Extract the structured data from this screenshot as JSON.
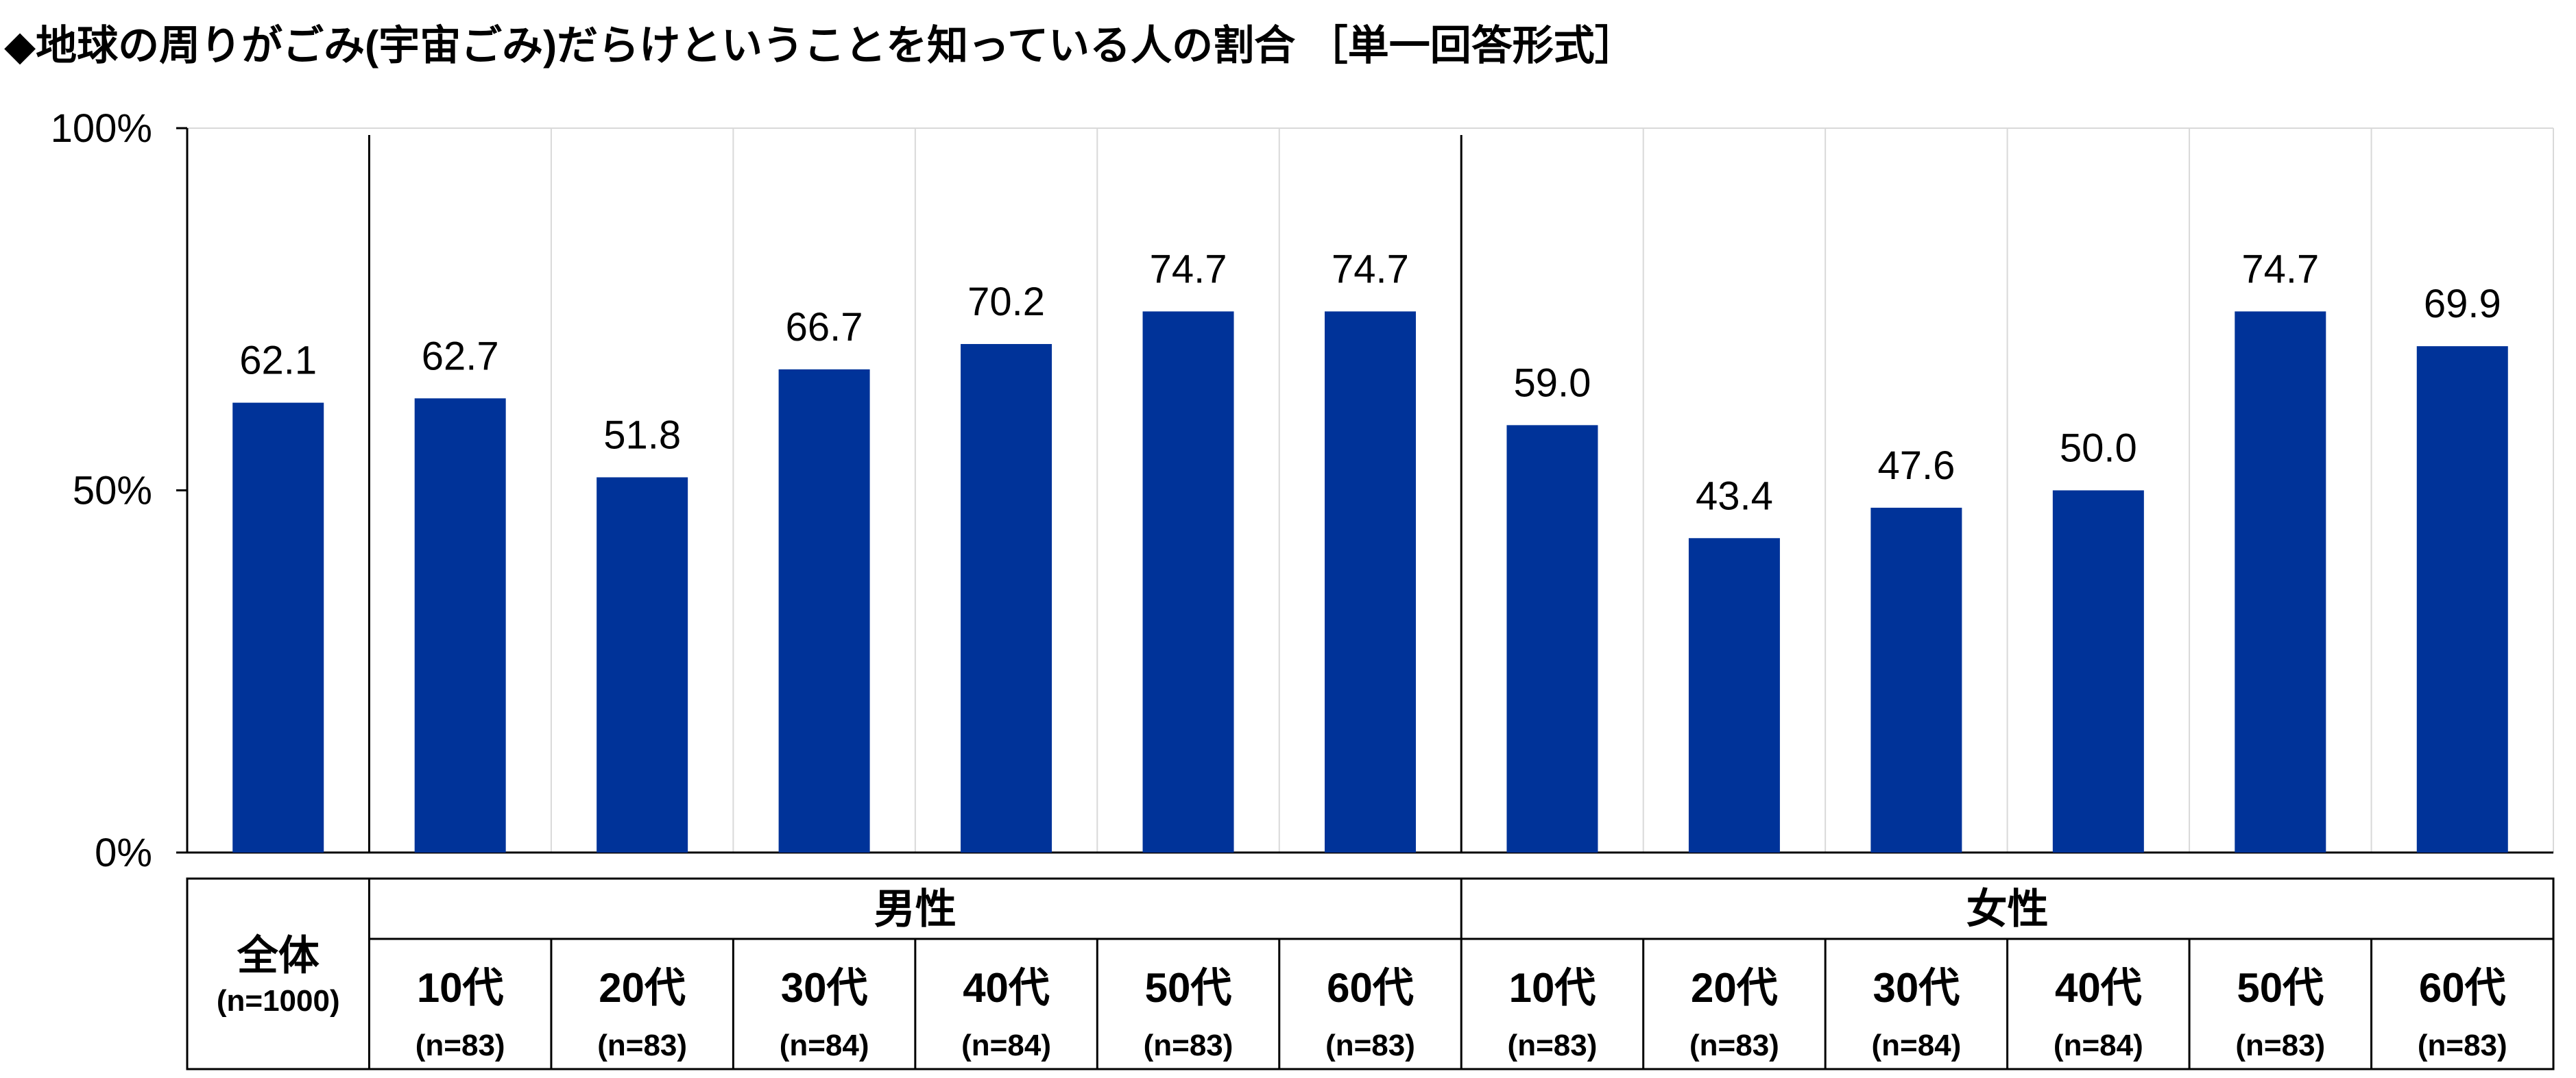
{
  "title": "◆地球の周りがごみ(宇宙ごみ)だらけということを知っている人の割合 ［単一回答形式］",
  "colors": {
    "bar": "#003399",
    "grid": "#d9d9d9",
    "axis": "#000000"
  },
  "chart_data": {
    "type": "bar",
    "ylim": [
      0,
      100
    ],
    "yticks": [
      "0%",
      "50%",
      "100%"
    ],
    "grid": true,
    "groups": [
      {
        "label": "全体",
        "n": "(n=1000)",
        "bars": [
          {
            "category": "",
            "n": "",
            "value": 62.1,
            "label": "62.1"
          }
        ]
      },
      {
        "label": "男性",
        "bars": [
          {
            "category": "10代",
            "n": "(n=83)",
            "value": 62.7,
            "label": "62.7"
          },
          {
            "category": "20代",
            "n": "(n=83)",
            "value": 51.8,
            "label": "51.8"
          },
          {
            "category": "30代",
            "n": "(n=84)",
            "value": 66.7,
            "label": "66.7"
          },
          {
            "category": "40代",
            "n": "(n=84)",
            "value": 70.2,
            "label": "70.2"
          },
          {
            "category": "50代",
            "n": "(n=83)",
            "value": 74.7,
            "label": "74.7"
          },
          {
            "category": "60代",
            "n": "(n=83)",
            "value": 74.7,
            "label": "74.7"
          }
        ]
      },
      {
        "label": "女性",
        "bars": [
          {
            "category": "10代",
            "n": "(n=83)",
            "value": 59.0,
            "label": "59.0"
          },
          {
            "category": "20代",
            "n": "(n=83)",
            "value": 43.4,
            "label": "43.4"
          },
          {
            "category": "30代",
            "n": "(n=84)",
            "value": 47.6,
            "label": "47.6"
          },
          {
            "category": "40代",
            "n": "(n=84)",
            "value": 50.0,
            "label": "50.0"
          },
          {
            "category": "50代",
            "n": "(n=83)",
            "value": 74.7,
            "label": "74.7"
          },
          {
            "category": "60代",
            "n": "(n=83)",
            "value": 69.9,
            "label": "69.9"
          }
        ]
      }
    ]
  }
}
